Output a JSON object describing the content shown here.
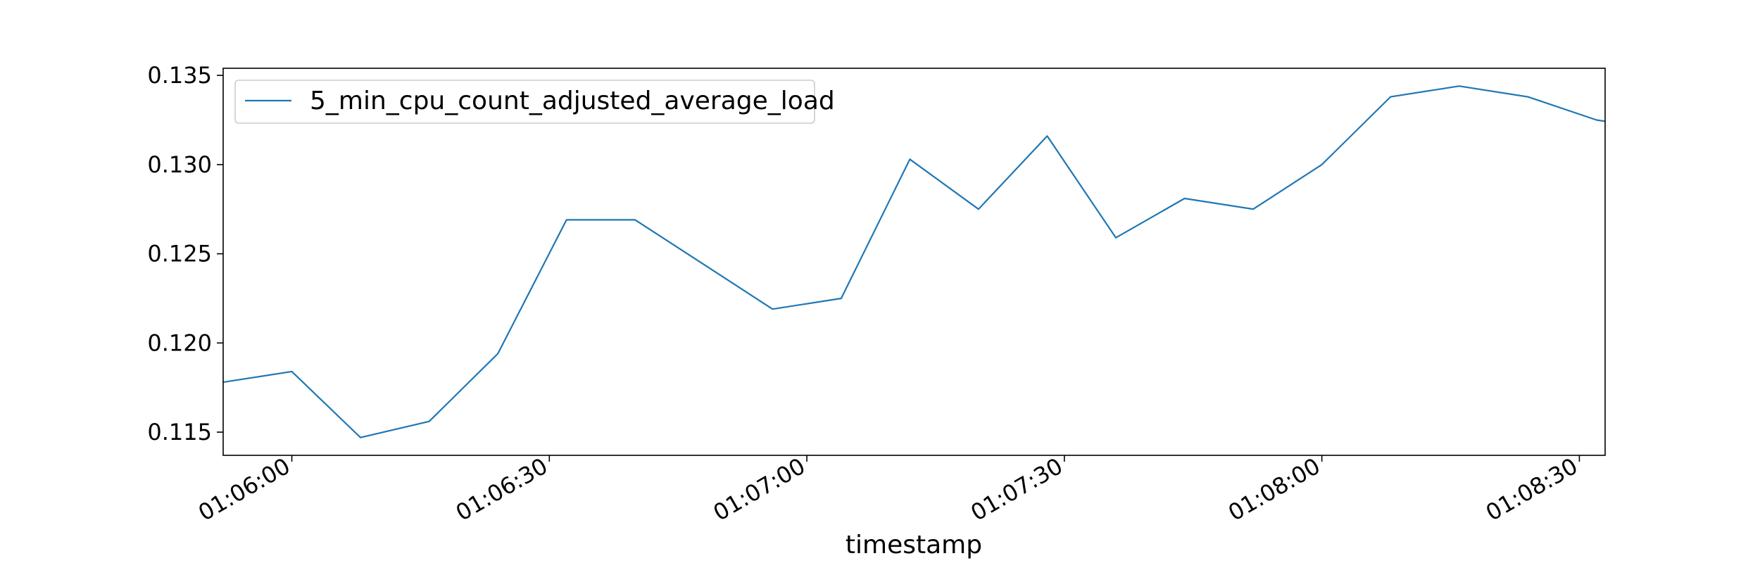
{
  "chart_data": {
    "type": "line",
    "title": "",
    "xlabel": "timestamp",
    "ylabel": "",
    "x_unit": "seconds after 01:06:00",
    "x": [
      -8,
      0,
      8,
      16,
      24,
      32,
      40,
      48,
      56,
      64,
      72,
      80,
      88,
      96,
      104,
      112,
      120,
      128,
      136,
      144,
      152,
      160
    ],
    "series": [
      {
        "name": "5_min_cpu_count_adjusted_average_load",
        "color": "#1f77b4",
        "values": [
          0.1178,
          0.1184,
          0.1147,
          0.1156,
          0.1194,
          0.1269,
          0.1269,
          0.1244,
          0.1219,
          0.1225,
          0.1303,
          0.1275,
          0.1316,
          0.1259,
          0.1281,
          0.1275,
          0.13,
          0.1338,
          0.1344,
          0.1338,
          0.1325,
          0.1319
        ]
      }
    ],
    "xlim": [
      -8,
      153
    ],
    "ylim": [
      0.1137,
      0.1354
    ],
    "x_ticks": [
      0,
      30,
      60,
      90,
      120,
      150
    ],
    "x_tick_labels": [
      "01:06:00",
      "01:06:30",
      "01:07:00",
      "01:07:30",
      "01:08:00",
      "01:08:30"
    ],
    "y_ticks": [
      0.115,
      0.12,
      0.125,
      0.13,
      0.135
    ],
    "y_tick_labels": [
      "0.115",
      "0.120",
      "0.125",
      "0.130",
      "0.135"
    ],
    "grid": false,
    "legend_position": "top-left"
  }
}
